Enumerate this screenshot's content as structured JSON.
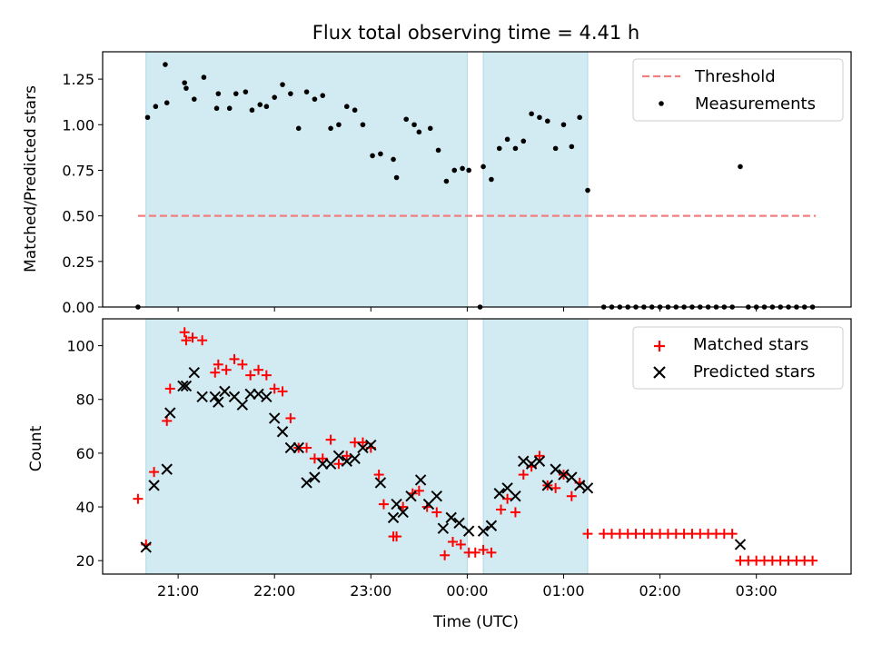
{
  "title": "Flux total observing time = 4.41 h",
  "xlabel": "Time (UTC)",
  "colors": {
    "shade": "#add8e6",
    "threshold": "#f08080",
    "matched": "#ff0000",
    "measure": "#000000"
  },
  "chart_data": [
    {
      "type": "scatter",
      "title": "Flux total observing time = 4.41 h",
      "ylabel": "Matched/Predicted stars",
      "ylim": [
        0,
        1.4
      ],
      "yticks": [
        "0.00",
        "0.25",
        "0.50",
        "0.75",
        "1.00",
        "1.25"
      ],
      "ytick_values": [
        0,
        0.25,
        0.5,
        0.75,
        1.0,
        1.25
      ],
      "xlim": [
        "20:13",
        "03:59"
      ],
      "xticks": [
        "21:00",
        "22:00",
        "23:00",
        "00:00",
        "01:00",
        "02:00",
        "03:00"
      ],
      "legend": [
        "Threshold",
        "Measurements"
      ],
      "legend_position": "top-right",
      "threshold": {
        "value": 0.5,
        "from": "20:35",
        "to": "03:37"
      },
      "shaded_intervals": [
        [
          "20:40",
          "00:00"
        ],
        [
          "00:10",
          "01:15"
        ]
      ],
      "series": [
        {
          "name": "Measurements",
          "points": [
            [
              "20:35",
              0.0
            ],
            [
              "20:41",
              1.04
            ],
            [
              "20:46",
              1.1
            ],
            [
              "20:52",
              1.33
            ],
            [
              "20:53",
              1.12
            ],
            [
              "21:04",
              1.23
            ],
            [
              "21:05",
              1.2
            ],
            [
              "21:10",
              1.14
            ],
            [
              "21:16",
              1.26
            ],
            [
              "21:24",
              1.09
            ],
            [
              "21:25",
              1.17
            ],
            [
              "21:32",
              1.09
            ],
            [
              "21:36",
              1.17
            ],
            [
              "21:42",
              1.18
            ],
            [
              "21:46",
              1.08
            ],
            [
              "21:51",
              1.11
            ],
            [
              "21:55",
              1.1
            ],
            [
              "22:00",
              1.15
            ],
            [
              "22:05",
              1.22
            ],
            [
              "22:10",
              1.17
            ],
            [
              "22:15",
              0.98
            ],
            [
              "22:20",
              1.18
            ],
            [
              "22:25",
              1.14
            ],
            [
              "22:30",
              1.16
            ],
            [
              "22:35",
              0.98
            ],
            [
              "22:40",
              1.0
            ],
            [
              "22:45",
              1.1
            ],
            [
              "22:50",
              1.08
            ],
            [
              "22:55",
              1.0
            ],
            [
              "23:01",
              0.83
            ],
            [
              "23:06",
              0.84
            ],
            [
              "23:14",
              0.81
            ],
            [
              "23:16",
              0.71
            ],
            [
              "23:22",
              1.03
            ],
            [
              "23:27",
              1.0
            ],
            [
              "23:30",
              0.96
            ],
            [
              "23:37",
              0.98
            ],
            [
              "23:42",
              0.86
            ],
            [
              "23:47",
              0.69
            ],
            [
              "23:52",
              0.75
            ],
            [
              "23:57",
              0.76
            ],
            [
              "00:01",
              0.75
            ],
            [
              "00:08",
              0.0
            ],
            [
              "00:10",
              0.77
            ],
            [
              "00:15",
              0.7
            ],
            [
              "00:20",
              0.87
            ],
            [
              "00:25",
              0.92
            ],
            [
              "00:30",
              0.87
            ],
            [
              "00:35",
              0.91
            ],
            [
              "00:40",
              1.06
            ],
            [
              "00:45",
              1.04
            ],
            [
              "00:50",
              1.02
            ],
            [
              "00:55",
              0.87
            ],
            [
              "01:00",
              1.0
            ],
            [
              "01:05",
              0.88
            ],
            [
              "01:10",
              1.04
            ],
            [
              "01:15",
              0.64
            ],
            [
              "01:25",
              0.0
            ],
            [
              "01:30",
              0.0
            ],
            [
              "01:35",
              0.0
            ],
            [
              "01:40",
              0.0
            ],
            [
              "01:45",
              0.0
            ],
            [
              "01:50",
              0.0
            ],
            [
              "01:55",
              0.0
            ],
            [
              "02:00",
              0.0
            ],
            [
              "02:05",
              0.0
            ],
            [
              "02:10",
              0.0
            ],
            [
              "02:15",
              0.0
            ],
            [
              "02:20",
              0.0
            ],
            [
              "02:25",
              0.0
            ],
            [
              "02:30",
              0.0
            ],
            [
              "02:35",
              0.0
            ],
            [
              "02:40",
              0.0
            ],
            [
              "02:45",
              0.0
            ],
            [
              "02:50",
              0.77
            ],
            [
              "02:55",
              0.0
            ],
            [
              "03:00",
              0.0
            ],
            [
              "03:05",
              0.0
            ],
            [
              "03:10",
              0.0
            ],
            [
              "03:15",
              0.0
            ],
            [
              "03:20",
              0.0
            ],
            [
              "03:25",
              0.0
            ],
            [
              "03:30",
              0.0
            ],
            [
              "03:35",
              0.0
            ]
          ]
        }
      ]
    },
    {
      "type": "scatter",
      "ylabel": "Count",
      "ylim": [
        15,
        110
      ],
      "yticks": [
        "20",
        "40",
        "60",
        "80",
        "100"
      ],
      "ytick_values": [
        20,
        40,
        60,
        80,
        100
      ],
      "xlim": [
        "20:13",
        "03:59"
      ],
      "xticks": [
        "21:00",
        "22:00",
        "23:00",
        "00:00",
        "01:00",
        "02:00",
        "03:00"
      ],
      "xlabel": "Time (UTC)",
      "legend": [
        "Matched stars",
        "Predicted stars"
      ],
      "legend_position": "top-right",
      "shaded_intervals": [
        [
          "20:40",
          "00:00"
        ],
        [
          "00:10",
          "01:15"
        ]
      ],
      "series": [
        {
          "name": "Matched stars",
          "points": [
            [
              "20:35",
              43
            ],
            [
              "20:40",
              26
            ],
            [
              "20:45",
              53
            ],
            [
              "20:53",
              72
            ],
            [
              "20:55",
              84
            ],
            [
              "21:04",
              105
            ],
            [
              "21:05",
              102
            ],
            [
              "21:09",
              103
            ],
            [
              "21:15",
              102
            ],
            [
              "21:23",
              90
            ],
            [
              "21:25",
              93
            ],
            [
              "21:30",
              91
            ],
            [
              "21:35",
              95
            ],
            [
              "21:40",
              93
            ],
            [
              "21:45",
              89
            ],
            [
              "21:50",
              91
            ],
            [
              "21:55",
              89
            ],
            [
              "22:00",
              84
            ],
            [
              "22:05",
              83
            ],
            [
              "22:10",
              73
            ],
            [
              "22:15",
              62
            ],
            [
              "22:20",
              62
            ],
            [
              "22:25",
              58
            ],
            [
              "22:30",
              58
            ],
            [
              "22:35",
              65
            ],
            [
              "22:40",
              56
            ],
            [
              "22:45",
              59
            ],
            [
              "22:50",
              64
            ],
            [
              "22:55",
              64
            ],
            [
              "23:00",
              62
            ],
            [
              "23:05",
              52
            ],
            [
              "23:08",
              41
            ],
            [
              "23:14",
              29
            ],
            [
              "23:16",
              29
            ],
            [
              "23:20",
              40
            ],
            [
              "23:26",
              45
            ],
            [
              "23:30",
              46
            ],
            [
              "23:35",
              40
            ],
            [
              "23:41",
              38
            ],
            [
              "23:46",
              22
            ],
            [
              "23:51",
              27
            ],
            [
              "23:56",
              26
            ],
            [
              "00:01",
              23
            ],
            [
              "00:05",
              23
            ],
            [
              "00:10",
              24
            ],
            [
              "00:15",
              23
            ],
            [
              "00:21",
              39
            ],
            [
              "00:25",
              43
            ],
            [
              "00:30",
              38
            ],
            [
              "00:35",
              52
            ],
            [
              "00:40",
              55
            ],
            [
              "00:45",
              59
            ],
            [
              "00:50",
              48
            ],
            [
              "00:55",
              47
            ],
            [
              "01:00",
              52
            ],
            [
              "01:05",
              44
            ],
            [
              "01:10",
              49
            ],
            [
              "01:15",
              30
            ],
            [
              "01:25",
              30
            ],
            [
              "01:30",
              30
            ],
            [
              "01:35",
              30
            ],
            [
              "01:40",
              30
            ],
            [
              "01:45",
              30
            ],
            [
              "01:50",
              30
            ],
            [
              "01:55",
              30
            ],
            [
              "02:00",
              30
            ],
            [
              "02:05",
              30
            ],
            [
              "02:10",
              30
            ],
            [
              "02:15",
              30
            ],
            [
              "02:20",
              30
            ],
            [
              "02:25",
              30
            ],
            [
              "02:30",
              30
            ],
            [
              "02:35",
              30
            ],
            [
              "02:40",
              30
            ],
            [
              "02:45",
              30
            ],
            [
              "02:50",
              20
            ],
            [
              "02:55",
              20
            ],
            [
              "03:00",
              20
            ],
            [
              "03:05",
              20
            ],
            [
              "03:10",
              20
            ],
            [
              "03:15",
              20
            ],
            [
              "03:20",
              20
            ],
            [
              "03:25",
              20
            ],
            [
              "03:30",
              20
            ],
            [
              "03:35",
              20
            ]
          ]
        },
        {
          "name": "Predicted stars",
          "points": [
            [
              "20:40",
              25
            ],
            [
              "20:45",
              48
            ],
            [
              "20:53",
              54
            ],
            [
              "20:55",
              75
            ],
            [
              "21:03",
              85
            ],
            [
              "21:05",
              85
            ],
            [
              "21:10",
              90
            ],
            [
              "21:15",
              81
            ],
            [
              "21:23",
              81
            ],
            [
              "21:25",
              79
            ],
            [
              "21:29",
              83
            ],
            [
              "21:35",
              81
            ],
            [
              "21:40",
              78
            ],
            [
              "21:45",
              82
            ],
            [
              "21:50",
              82
            ],
            [
              "21:55",
              81
            ],
            [
              "22:00",
              73
            ],
            [
              "22:05",
              68
            ],
            [
              "22:10",
              62
            ],
            [
              "22:15",
              62
            ],
            [
              "22:20",
              49
            ],
            [
              "22:25",
              51
            ],
            [
              "22:30",
              56
            ],
            [
              "22:35",
              56
            ],
            [
              "22:40",
              59
            ],
            [
              "22:45",
              57
            ],
            [
              "22:50",
              58
            ],
            [
              "22:55",
              62
            ],
            [
              "23:00",
              63
            ],
            [
              "23:06",
              49
            ],
            [
              "23:14",
              36
            ],
            [
              "23:16",
              41
            ],
            [
              "23:20",
              38
            ],
            [
              "23:25",
              44
            ],
            [
              "23:31",
              50
            ],
            [
              "23:36",
              41
            ],
            [
              "23:41",
              44
            ],
            [
              "23:45",
              32
            ],
            [
              "23:50",
              36
            ],
            [
              "23:55",
              34
            ],
            [
              "00:01",
              31
            ],
            [
              "00:10",
              31
            ],
            [
              "00:15",
              33
            ],
            [
              "00:20",
              45
            ],
            [
              "00:25",
              47
            ],
            [
              "00:30",
              44
            ],
            [
              "00:35",
              57
            ],
            [
              "00:40",
              56
            ],
            [
              "00:45",
              57
            ],
            [
              "00:50",
              48
            ],
            [
              "00:55",
              54
            ],
            [
              "01:00",
              52
            ],
            [
              "01:05",
              51
            ],
            [
              "01:10",
              48
            ],
            [
              "01:15",
              47
            ],
            [
              "02:50",
              26
            ]
          ]
        }
      ]
    }
  ]
}
